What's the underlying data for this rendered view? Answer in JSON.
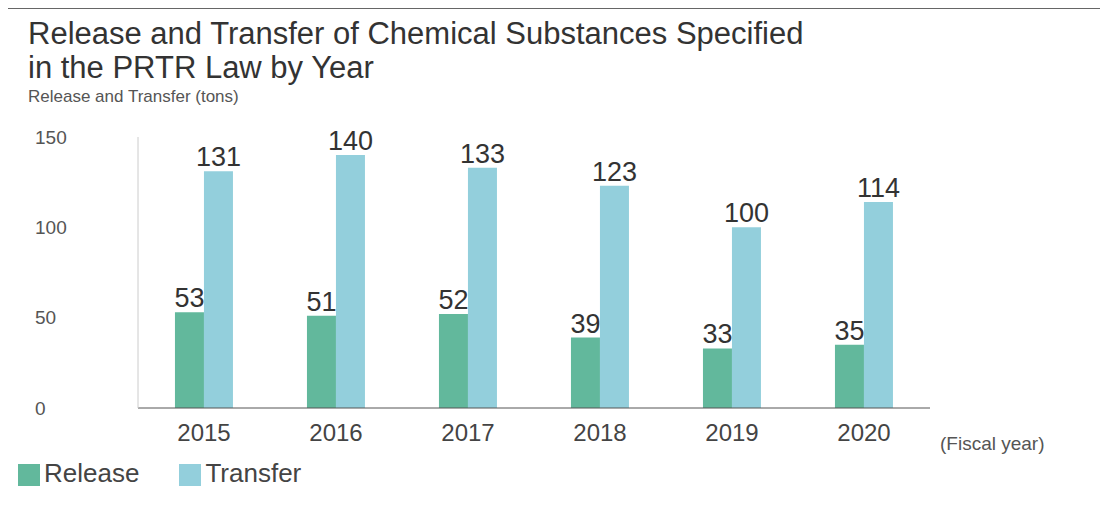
{
  "chart_data": {
    "type": "bar",
    "title": "Release and Transfer of Chemical Substances Specified in the PRTR Law by Year",
    "y_label": "Release and Transfer (tons)",
    "x_label": "(Fiscal year)",
    "categories": [
      "2015",
      "2016",
      "2017",
      "2018",
      "2019",
      "2020"
    ],
    "series": [
      {
        "name": "Release",
        "color": "#62b89c",
        "values": [
          53,
          51,
          52,
          39,
          33,
          35
        ]
      },
      {
        "name": "Transfer",
        "color": "#93cfdc",
        "values": [
          131,
          140,
          133,
          123,
          100,
          114
        ]
      }
    ],
    "ylim": [
      0,
      150
    ],
    "yticks": [
      0,
      50,
      100,
      150
    ],
    "grid": false,
    "data_labels": true,
    "legend": "bottom-left"
  }
}
